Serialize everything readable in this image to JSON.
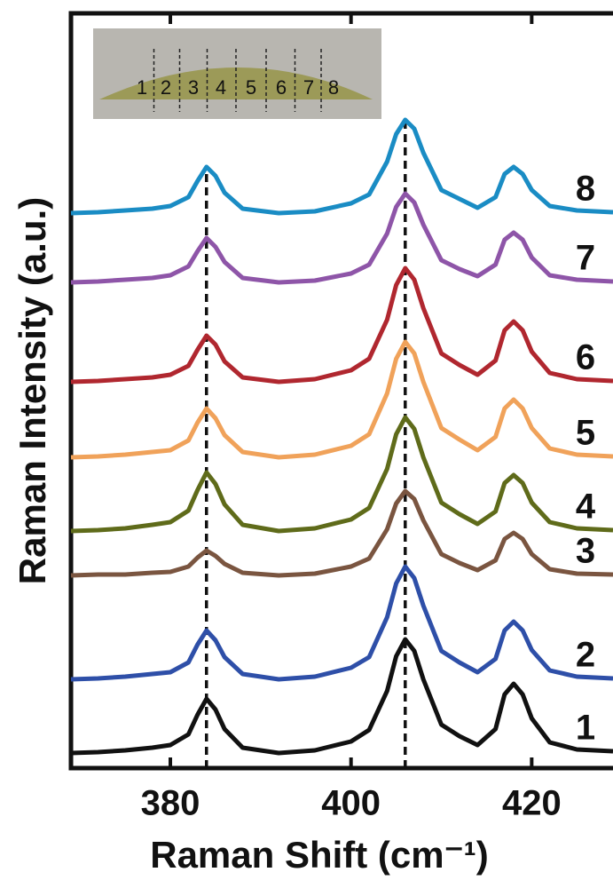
{
  "chart_data": {
    "type": "line",
    "xlabel": "Raman Shift (cm⁻¹)",
    "ylabel": "Raman Intensity (a.u.)",
    "x": [
      369,
      372,
      375,
      378,
      380,
      382,
      383,
      384,
      385,
      386,
      388,
      392,
      396,
      400,
      402,
      404,
      405,
      406,
      407,
      408,
      410,
      412,
      414,
      416,
      417,
      418,
      419,
      420,
      422,
      425,
      429
    ],
    "xlim": [
      369,
      429
    ],
    "xticks": [
      380,
      400,
      420
    ],
    "ylim": [
      0,
      85
    ],
    "reference_lines_x": [
      384,
      406
    ],
    "series": [
      {
        "name": "1",
        "color": "#111111",
        "values": [
          1.7,
          1.8,
          2.0,
          2.3,
          2.6,
          3.8,
          6.0,
          7.8,
          6.6,
          4.4,
          2.3,
          1.7,
          2.0,
          3.0,
          4.3,
          8.7,
          12.6,
          14.5,
          13.2,
          10.0,
          4.9,
          3.6,
          2.6,
          4.4,
          8.3,
          9.5,
          8.3,
          5.6,
          2.9,
          2.1,
          1.9
        ]
      },
      {
        "name": "2",
        "color": "#2e4fa8",
        "values": [
          10.0,
          10.1,
          10.3,
          10.6,
          10.8,
          11.9,
          13.9,
          15.5,
          14.4,
          12.5,
          10.6,
          10.0,
          10.3,
          11.3,
          12.5,
          17.0,
          20.8,
          22.7,
          21.4,
          18.3,
          13.2,
          11.9,
          10.8,
          12.3,
          15.5,
          16.5,
          15.5,
          13.3,
          11.0,
          10.3,
          10.1
        ]
      },
      {
        "name": "3",
        "color": "#7a5540",
        "values": [
          21.7,
          21.8,
          21.8,
          22.0,
          22.1,
          22.7,
          23.7,
          24.5,
          23.9,
          23.0,
          22.0,
          21.7,
          21.9,
          22.7,
          23.6,
          26.9,
          29.8,
          31.2,
          30.3,
          27.9,
          24.1,
          23.1,
          22.3,
          23.4,
          25.8,
          26.5,
          25.8,
          24.1,
          22.4,
          21.9,
          21.8
        ]
      },
      {
        "name": "4",
        "color": "#5f6b1a",
        "values": [
          26.7,
          26.8,
          27.0,
          27.4,
          27.7,
          29.0,
          31.3,
          33.3,
          32.0,
          29.7,
          27.4,
          26.7,
          27.0,
          28.0,
          29.3,
          33.7,
          37.6,
          39.5,
          38.2,
          35.0,
          29.9,
          28.6,
          27.5,
          28.9,
          32.1,
          33.0,
          32.1,
          29.9,
          27.7,
          27.0,
          26.8
        ]
      },
      {
        "name": "5",
        "color": "#f0a25a",
        "values": [
          35.0,
          35.1,
          35.3,
          35.6,
          35.8,
          36.9,
          38.9,
          40.5,
          39.4,
          37.5,
          35.6,
          35.0,
          35.3,
          36.3,
          37.6,
          42.2,
          46.1,
          48.0,
          46.7,
          43.5,
          38.3,
          37.0,
          35.8,
          37.3,
          40.5,
          41.5,
          40.5,
          38.3,
          36.0,
          35.3,
          35.1
        ]
      },
      {
        "name": "6",
        "color": "#b0272f",
        "values": [
          43.5,
          43.6,
          43.8,
          44.0,
          44.3,
          45.3,
          47.1,
          48.7,
          47.7,
          45.8,
          44.0,
          43.5,
          43.8,
          44.8,
          46.1,
          50.5,
          54.4,
          56.3,
          55.0,
          51.8,
          46.7,
          45.4,
          44.3,
          45.9,
          49.3,
          50.3,
          49.3,
          46.9,
          44.5,
          43.8,
          43.6
        ]
      },
      {
        "name": "7",
        "color": "#8e55a8",
        "values": [
          54.7,
          54.8,
          55.0,
          55.2,
          55.5,
          56.5,
          58.2,
          59.7,
          58.7,
          57.0,
          55.2,
          54.7,
          54.9,
          55.7,
          56.7,
          60.2,
          63.2,
          64.7,
          63.7,
          61.2,
          57.2,
          56.2,
          55.4,
          56.7,
          59.5,
          60.3,
          59.5,
          57.5,
          55.5,
          55.0,
          54.8
        ]
      },
      {
        "name": "8",
        "color": "#1a8cc4",
        "values": [
          62.5,
          62.6,
          62.8,
          63.0,
          63.3,
          64.3,
          66.1,
          67.7,
          66.7,
          64.8,
          63.0,
          62.5,
          62.7,
          63.6,
          64.6,
          68.3,
          71.4,
          73.0,
          72.0,
          69.3,
          65.1,
          64.1,
          63.1,
          64.3,
          66.9,
          67.7,
          66.9,
          65.1,
          63.3,
          62.8,
          62.6
        ]
      }
    ],
    "inset": {
      "labels": [
        "1",
        "2",
        "3",
        "4",
        "5",
        "6",
        "7",
        "8"
      ]
    }
  }
}
